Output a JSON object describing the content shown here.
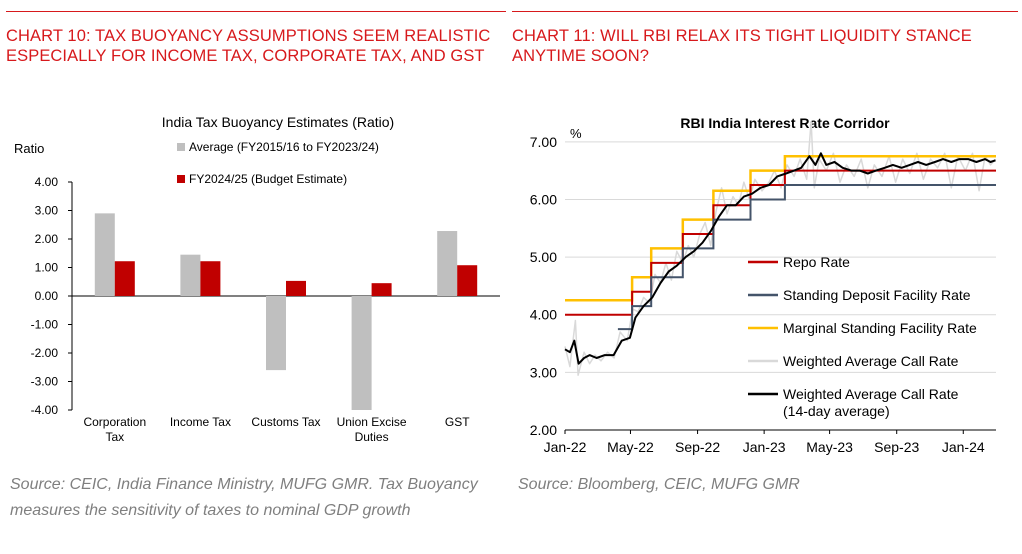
{
  "left": {
    "heading": "CHART 10: TAX BUOYANCY ASSUMPTIONS SEEM REALISTIC ESPECIALLY FOR INCOME TAX, CORPORATE TAX, AND GST",
    "source": "Source: CEIC, India Finance Ministry, MUFG GMR.  Tax Buoyancy measures the sensitivity of taxes to nominal GDP growth",
    "colors": {
      "average": "#bfbfbf",
      "budget": "#c00000"
    }
  },
  "right": {
    "heading": "CHART 11: WILL RBI RELAX ITS TIGHT LIQUIDITY STANCE ANYTIME SOON?",
    "source": "Source: Bloomberg, CEIC, MUFG GMR",
    "colors": {
      "repo": "#c00000",
      "sdf": "#44546a",
      "msf": "#ffc000",
      "call": "#d9d9d9",
      "call14": "#000000"
    }
  },
  "chart_data": [
    {
      "type": "bar",
      "title": "India Tax Buoyancy Estimates (Ratio)",
      "ylabel": "Ratio",
      "xlabel": "",
      "categories": [
        "Corporation Tax",
        "Income Tax",
        "Customs Tax",
        "Union Excise Duties",
        "GST"
      ],
      "series": [
        {
          "name": "Average (FY2015/16 to FY2023/24)",
          "values": [
            2.9,
            1.45,
            -2.6,
            -4.0,
            2.28
          ]
        },
        {
          "name": "FY2024/25 (Budget Estimate)",
          "values": [
            1.22,
            1.22,
            0.53,
            0.45,
            1.08
          ]
        }
      ],
      "ylim": [
        -4.0,
        4.0
      ],
      "yticks": [
        "4.00",
        "3.00",
        "2.00",
        "1.00",
        "0.00",
        "-1.00",
        "-2.00",
        "-3.00",
        "-4.00"
      ],
      "grid": false,
      "legend": "top-right"
    },
    {
      "type": "line",
      "title": "RBI India Interest Rate Corridor",
      "ylabel": "%",
      "xlabel": "",
      "ylim": [
        2.0,
        7.5
      ],
      "yticks": [
        "7.00",
        "6.00",
        "5.00",
        "4.00",
        "3.00",
        "2.00"
      ],
      "xticks": [
        "Jan-22",
        "May-22",
        "Sep-22",
        "Jan-23",
        "May-23",
        "Sep-23",
        "Jan-24"
      ],
      "grid": true,
      "legend": "right",
      "step_series": [
        {
          "name": "Repo Rate",
          "key": "repo",
          "breakpoints": [
            [
              "2022-01-01",
              4.0
            ],
            [
              "2022-05-04",
              4.4
            ],
            [
              "2022-06-08",
              4.9
            ],
            [
              "2022-08-05",
              5.4
            ],
            [
              "2022-09-30",
              5.9
            ],
            [
              "2022-12-07",
              6.25
            ],
            [
              "2023-02-08",
              6.5
            ],
            [
              "2024-03-01",
              6.5
            ]
          ]
        },
        {
          "name": "Standing Deposit Facility Rate",
          "key": "sdf",
          "breakpoints": [
            [
              "2022-04-08",
              3.75
            ],
            [
              "2022-05-04",
              4.15
            ],
            [
              "2022-06-08",
              4.65
            ],
            [
              "2022-08-05",
              5.15
            ],
            [
              "2022-09-30",
              5.65
            ],
            [
              "2022-12-07",
              6.0
            ],
            [
              "2023-02-08",
              6.25
            ],
            [
              "2024-03-01",
              6.25
            ]
          ]
        },
        {
          "name": "Marginal Standing Facility Rate",
          "key": "msf",
          "breakpoints": [
            [
              "2022-01-01",
              4.25
            ],
            [
              "2022-05-04",
              4.65
            ],
            [
              "2022-06-08",
              5.15
            ],
            [
              "2022-08-05",
              5.65
            ],
            [
              "2022-09-30",
              6.15
            ],
            [
              "2022-12-07",
              6.5
            ],
            [
              "2023-02-08",
              6.75
            ],
            [
              "2024-03-01",
              6.75
            ]
          ]
        }
      ],
      "line_series": [
        {
          "name": "Weighted Average Call Rate",
          "key": "call",
          "points": [
            [
              "2022-01-01",
              3.45
            ],
            [
              "2022-01-10",
              3.1
            ],
            [
              "2022-01-20",
              3.9
            ],
            [
              "2022-01-25",
              2.95
            ],
            [
              "2022-02-05",
              3.35
            ],
            [
              "2022-02-15",
              3.15
            ],
            [
              "2022-02-25",
              3.3
            ],
            [
              "2022-03-08",
              3.2
            ],
            [
              "2022-03-20",
              3.35
            ],
            [
              "2022-04-01",
              3.25
            ],
            [
              "2022-04-12",
              3.7
            ],
            [
              "2022-04-25",
              3.55
            ],
            [
              "2022-05-05",
              4.1
            ],
            [
              "2022-05-15",
              4.05
            ],
            [
              "2022-05-25",
              4.3
            ],
            [
              "2022-06-05",
              4.2
            ],
            [
              "2022-06-15",
              4.7
            ],
            [
              "2022-06-25",
              4.55
            ],
            [
              "2022-07-05",
              4.9
            ],
            [
              "2022-07-15",
              4.6
            ],
            [
              "2022-07-25",
              5.1
            ],
            [
              "2022-08-05",
              4.9
            ],
            [
              "2022-08-15",
              5.2
            ],
            [
              "2022-08-25",
              5.0
            ],
            [
              "2022-09-05",
              5.4
            ],
            [
              "2022-09-15",
              5.6
            ],
            [
              "2022-09-25",
              5.2
            ],
            [
              "2022-10-05",
              5.8
            ],
            [
              "2022-10-15",
              6.2
            ],
            [
              "2022-10-25",
              5.75
            ],
            [
              "2022-11-05",
              6.05
            ],
            [
              "2022-11-15",
              5.9
            ],
            [
              "2022-11-25",
              6.3
            ],
            [
              "2022-12-05",
              6.0
            ],
            [
              "2022-12-15",
              6.35
            ],
            [
              "2022-12-28",
              6.15
            ],
            [
              "2023-01-10",
              6.3
            ],
            [
              "2023-01-20",
              6.5
            ],
            [
              "2023-02-01",
              6.2
            ],
            [
              "2023-02-12",
              6.6
            ],
            [
              "2023-02-25",
              6.4
            ],
            [
              "2023-03-08",
              6.7
            ],
            [
              "2023-03-20",
              6.35
            ],
            [
              "2023-03-28",
              7.35
            ],
            [
              "2023-04-03",
              6.2
            ],
            [
              "2023-04-12",
              6.7
            ],
            [
              "2023-04-25",
              6.5
            ],
            [
              "2023-05-08",
              6.8
            ],
            [
              "2023-05-20",
              6.3
            ],
            [
              "2023-06-01",
              6.6
            ],
            [
              "2023-06-15",
              6.4
            ],
            [
              "2023-06-28",
              6.7
            ],
            [
              "2023-07-10",
              6.2
            ],
            [
              "2023-07-22",
              6.6
            ],
            [
              "2023-08-05",
              6.4
            ],
            [
              "2023-08-18",
              6.75
            ],
            [
              "2023-08-30",
              6.3
            ],
            [
              "2023-09-12",
              6.7
            ],
            [
              "2023-09-25",
              6.45
            ],
            [
              "2023-10-08",
              6.8
            ],
            [
              "2023-10-20",
              6.35
            ],
            [
              "2023-11-02",
              6.7
            ],
            [
              "2023-11-15",
              6.55
            ],
            [
              "2023-11-28",
              6.8
            ],
            [
              "2023-12-10",
              6.2
            ],
            [
              "2023-12-22",
              6.75
            ],
            [
              "2024-01-05",
              6.5
            ],
            [
              "2024-01-18",
              6.8
            ],
            [
              "2024-01-30",
              6.15
            ],
            [
              "2024-02-10",
              6.75
            ],
            [
              "2024-02-20",
              6.6
            ],
            [
              "2024-02-29",
              6.7
            ]
          ]
        },
        {
          "name": "Weighted Average Call Rate (14-day average)",
          "key": "call14",
          "points": [
            [
              "2022-01-01",
              3.4
            ],
            [
              "2022-01-10",
              3.35
            ],
            [
              "2022-01-18",
              3.55
            ],
            [
              "2022-01-26",
              3.15
            ],
            [
              "2022-02-05",
              3.25
            ],
            [
              "2022-02-15",
              3.3
            ],
            [
              "2022-02-28",
              3.25
            ],
            [
              "2022-03-15",
              3.3
            ],
            [
              "2022-03-31",
              3.3
            ],
            [
              "2022-04-15",
              3.55
            ],
            [
              "2022-04-30",
              3.6
            ],
            [
              "2022-05-10",
              3.95
            ],
            [
              "2022-05-25",
              4.15
            ],
            [
              "2022-06-10",
              4.3
            ],
            [
              "2022-06-25",
              4.55
            ],
            [
              "2022-07-10",
              4.75
            ],
            [
              "2022-07-25",
              4.85
            ],
            [
              "2022-08-10",
              5.0
            ],
            [
              "2022-08-25",
              5.1
            ],
            [
              "2022-09-10",
              5.25
            ],
            [
              "2022-09-25",
              5.45
            ],
            [
              "2022-10-10",
              5.7
            ],
            [
              "2022-10-25",
              5.9
            ],
            [
              "2022-11-10",
              5.9
            ],
            [
              "2022-11-25",
              6.05
            ],
            [
              "2022-12-10",
              6.1
            ],
            [
              "2022-12-25",
              6.2
            ],
            [
              "2023-01-10",
              6.25
            ],
            [
              "2023-01-25",
              6.4
            ],
            [
              "2023-02-10",
              6.45
            ],
            [
              "2023-02-25",
              6.5
            ],
            [
              "2023-03-10",
              6.55
            ],
            [
              "2023-03-25",
              6.75
            ],
            [
              "2023-04-05",
              6.6
            ],
            [
              "2023-04-15",
              6.8
            ],
            [
              "2023-04-25",
              6.6
            ],
            [
              "2023-05-10",
              6.65
            ],
            [
              "2023-05-25",
              6.55
            ],
            [
              "2023-06-10",
              6.5
            ],
            [
              "2023-06-25",
              6.5
            ],
            [
              "2023-07-10",
              6.45
            ],
            [
              "2023-07-25",
              6.5
            ],
            [
              "2023-08-10",
              6.55
            ],
            [
              "2023-08-25",
              6.6
            ],
            [
              "2023-09-10",
              6.55
            ],
            [
              "2023-09-25",
              6.6
            ],
            [
              "2023-10-10",
              6.65
            ],
            [
              "2023-10-25",
              6.6
            ],
            [
              "2023-11-10",
              6.65
            ],
            [
              "2023-11-25",
              6.7
            ],
            [
              "2023-12-10",
              6.65
            ],
            [
              "2023-12-25",
              6.7
            ],
            [
              "2024-01-10",
              6.7
            ],
            [
              "2024-01-25",
              6.65
            ],
            [
              "2024-02-10",
              6.7
            ],
            [
              "2024-02-20",
              6.65
            ],
            [
              "2024-02-29",
              6.68
            ]
          ]
        }
      ]
    }
  ]
}
